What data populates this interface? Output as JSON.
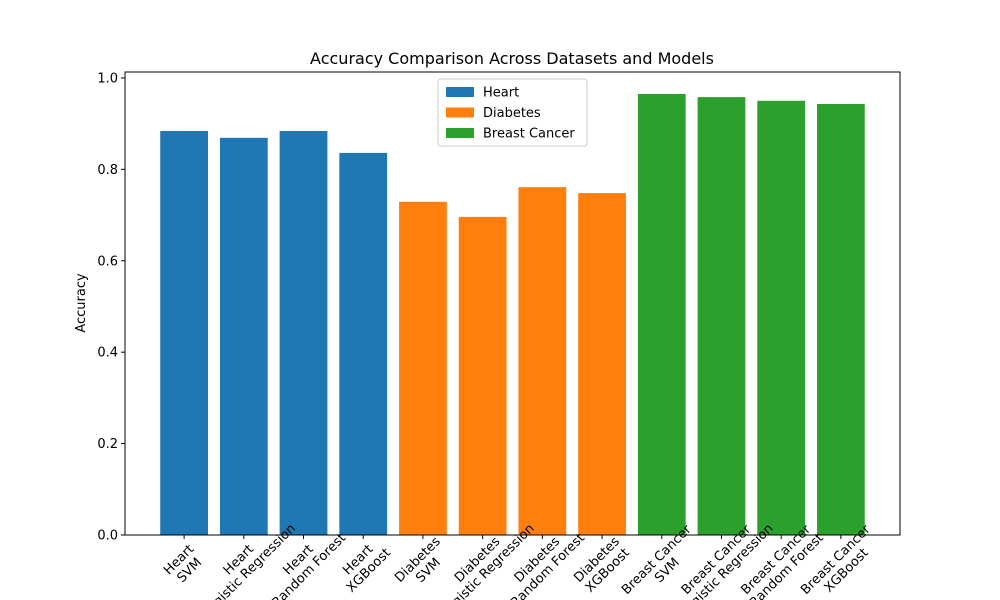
{
  "chart_data": {
    "type": "bar",
    "title": "Accuracy Comparison Across Datasets and Models",
    "y_label": "Accuracy",
    "categories": [
      "Heart\nSVM",
      "Heart\nLogistic Regression",
      "Heart\nRandom Forest",
      "Heart\nXGBoost",
      "Diabetes\nSVM",
      "Diabetes\nLogistic Regression",
      "Diabetes\nRandom Forest",
      "Diabetes\nXGBoost",
      "Breast Cancer\nSVM",
      "Breast Cancer\nLogistic Regression",
      "Breast Cancer\nRandom Forest",
      "Breast Cancer\nXGBoost"
    ],
    "series": [
      {
        "name": "Heart",
        "color": "#1f77b4",
        "values": [
          0.884,
          0.869,
          0.884,
          0.836,
          null,
          null,
          null,
          null,
          null,
          null,
          null,
          null
        ]
      },
      {
        "name": "Diabetes",
        "color": "#ff7f0e",
        "values": [
          null,
          null,
          null,
          null,
          0.729,
          0.696,
          0.761,
          0.748,
          null,
          null,
          null,
          null
        ]
      },
      {
        "name": "Breast Cancer",
        "color": "#2ca02c",
        "values": [
          null,
          null,
          null,
          null,
          null,
          null,
          null,
          null,
          0.965,
          0.958,
          0.95,
          0.943
        ]
      }
    ],
    "ylim": [
      0,
      1.013
    ],
    "yticks": [
      {
        "value": 0,
        "label": "0.0"
      },
      0.2,
      0.4,
      0.6,
      0.8,
      {
        "value": 1,
        "label": "1.0"
      }
    ],
    "grid": false,
    "legend": "upper center"
  }
}
